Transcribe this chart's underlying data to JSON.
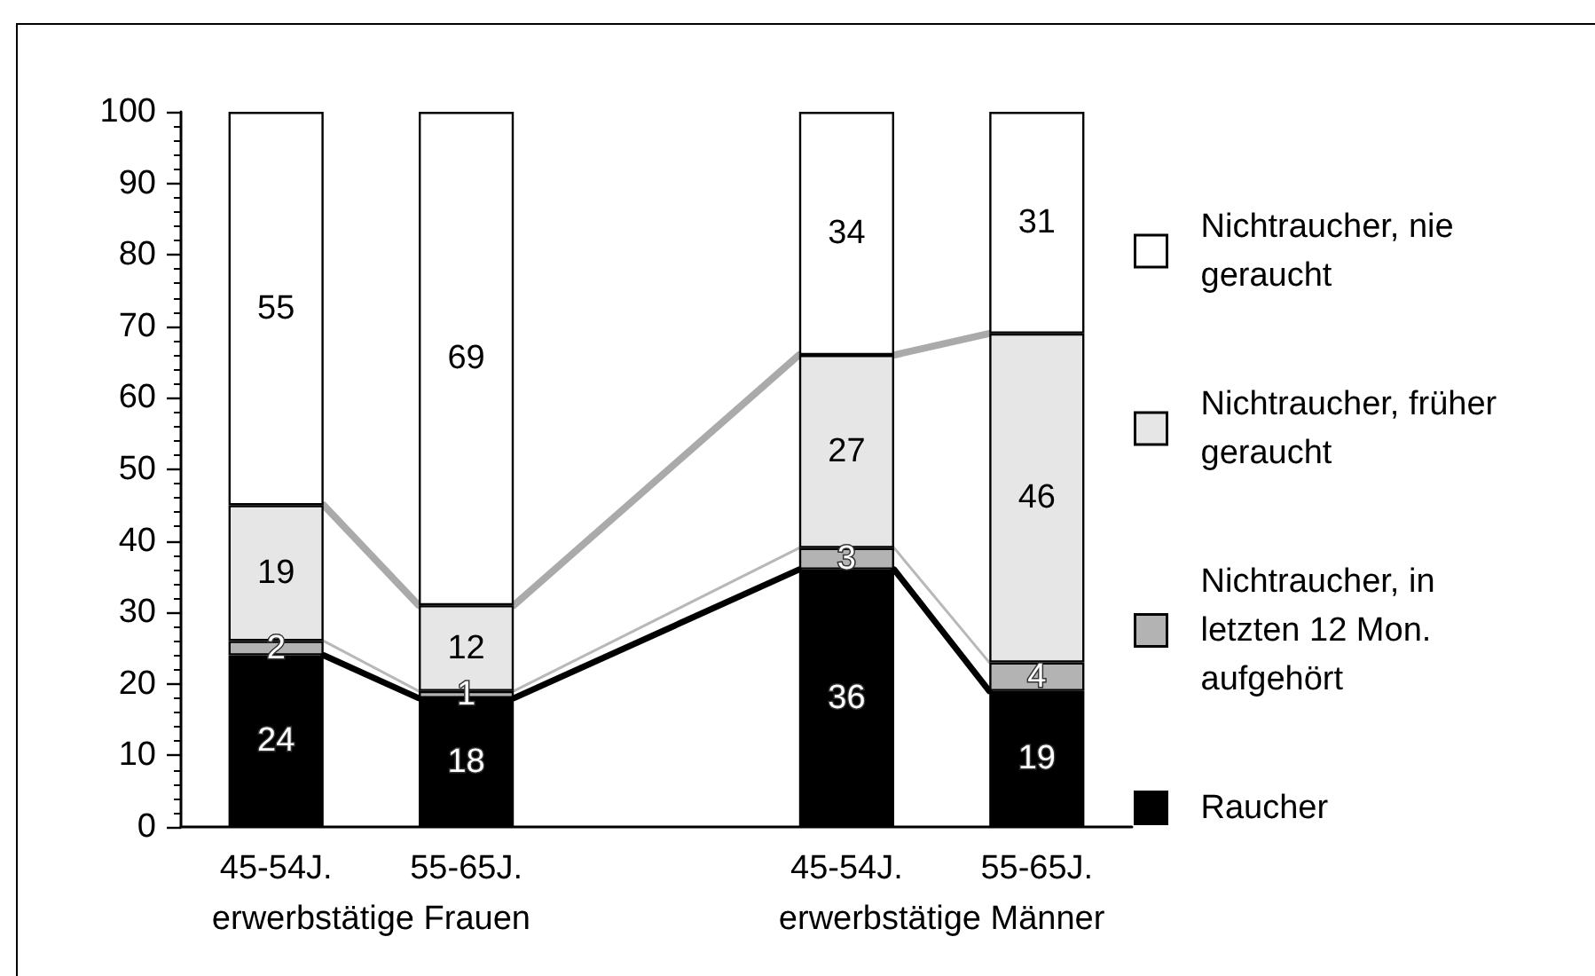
{
  "chart_data": {
    "type": "bar",
    "stacked": true,
    "categories": [
      "45-54J.",
      "55-65J.",
      null,
      "45-54J.",
      "55-65J."
    ],
    "series": [
      {
        "name": "Raucher",
        "color": "#000000",
        "values": [
          24,
          18,
          null,
          36,
          19
        ]
      },
      {
        "name": "Nichtraucher, in letzten 12 Mon. aufgehört",
        "color": "#b3b3b3",
        "values": [
          2,
          1,
          null,
          3,
          4
        ]
      },
      {
        "name": "Nichtraucher, früher geraucht",
        "color": "#e6e6e6",
        "values": [
          19,
          12,
          null,
          27,
          46
        ]
      },
      {
        "name": "Nichtraucher, nie geraucht",
        "color": "#ffffff",
        "values": [
          55,
          69,
          null,
          34,
          31
        ]
      }
    ],
    "ylim": [
      0,
      100
    ],
    "yticks": [
      0,
      10,
      20,
      30,
      40,
      50,
      60,
      70,
      80,
      90,
      100
    ],
    "legend": "right",
    "data_labels": true,
    "annotations": [
      "erwerbstätige Frauen",
      "erwerbstätige Männer"
    ]
  }
}
